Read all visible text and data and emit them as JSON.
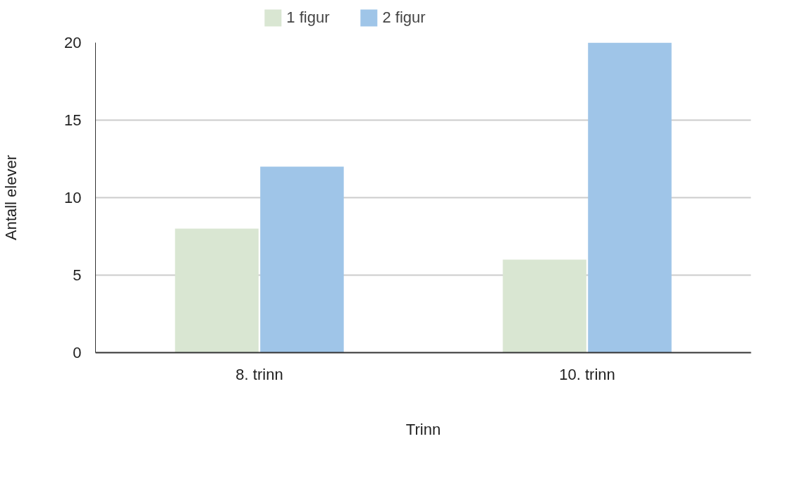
{
  "chart_data": {
    "type": "bar",
    "xlabel": "Trinn",
    "ylabel": "Antall elever",
    "categories": [
      "8. trinn",
      "10. trinn"
    ],
    "series": [
      {
        "name": "1 figur",
        "color": "#d9e6d2",
        "values": [
          8,
          6
        ]
      },
      {
        "name": "2 figur",
        "color": "#9fc5e8",
        "values": [
          12,
          20
        ]
      }
    ],
    "ylim": [
      0,
      20
    ],
    "yticks": [
      0,
      5,
      10,
      15,
      20
    ],
    "grid": "y",
    "legend": "top"
  }
}
